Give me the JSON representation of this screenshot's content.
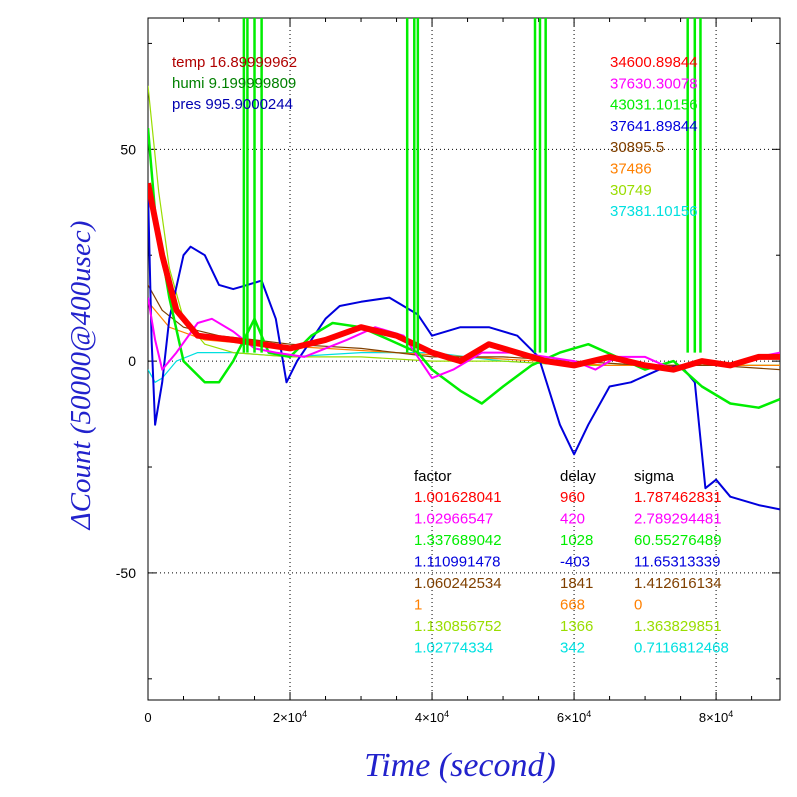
{
  "chart_data": {
    "type": "line",
    "xlabel": "Time (second)",
    "ylabel": "ΔCount (50000@400usec)",
    "xlim": [
      0,
      89000
    ],
    "ylim": [
      -80,
      81
    ],
    "x_ticks": [
      {
        "value": 0,
        "label": "0"
      },
      {
        "value": 20000,
        "mant": "2×10",
        "exp": "4"
      },
      {
        "value": 40000,
        "mant": "4×10",
        "exp": "4"
      },
      {
        "value": 60000,
        "mant": "6×10",
        "exp": "4"
      },
      {
        "value": 80000,
        "mant": "8×10",
        "exp": "4"
      }
    ],
    "y_ticks": [
      {
        "value": 50,
        "label": "50"
      },
      {
        "value": 0,
        "label": "0"
      },
      {
        "value": -50,
        "label": "-50"
      }
    ],
    "grid": "dotted",
    "env_info": [
      {
        "text": "temp 16.89999962",
        "color": "#b00000"
      },
      {
        "text": "humi 9.199999809",
        "color": "#008000"
      },
      {
        "text": "pres 995.9000244",
        "color": "#0000b0"
      }
    ],
    "table_headers": [
      "factor",
      "delay",
      "sigma"
    ],
    "series": [
      {
        "base": "34600.89844",
        "factor": "1.001628041",
        "delay": "960",
        "sigma": "1.787462831",
        "color": "#ff0000",
        "points": [
          [
            0,
            42
          ],
          [
            2000,
            25
          ],
          [
            4000,
            12
          ],
          [
            7000,
            6
          ],
          [
            12000,
            5
          ],
          [
            20000,
            3
          ],
          [
            25000,
            5
          ],
          [
            30000,
            8
          ],
          [
            35000,
            6
          ],
          [
            40000,
            2
          ],
          [
            44000,
            0
          ],
          [
            48000,
            4
          ],
          [
            52000,
            2
          ],
          [
            56000,
            0
          ],
          [
            60000,
            -1
          ],
          [
            65000,
            1
          ],
          [
            70000,
            -1
          ],
          [
            74000,
            -2
          ],
          [
            78000,
            0
          ],
          [
            82000,
            -1
          ],
          [
            86000,
            1
          ],
          [
            89000,
            1
          ]
        ]
      },
      {
        "base": "37630.30078",
        "factor": "1.02966547",
        "delay": "420",
        "sigma": "2.789294481",
        "color": "#ff00ff",
        "points": [
          [
            0,
            15
          ],
          [
            1000,
            5
          ],
          [
            2000,
            -2
          ],
          [
            4000,
            2
          ],
          [
            7000,
            9
          ],
          [
            9000,
            10
          ],
          [
            12000,
            7
          ],
          [
            15000,
            3
          ],
          [
            18000,
            2
          ],
          [
            22000,
            1
          ],
          [
            28000,
            5
          ],
          [
            32000,
            8
          ],
          [
            36000,
            6
          ],
          [
            40000,
            -4
          ],
          [
            43000,
            -2
          ],
          [
            47000,
            2
          ],
          [
            52000,
            2
          ],
          [
            56000,
            1
          ],
          [
            60000,
            0
          ],
          [
            63000,
            -2
          ],
          [
            66000,
            1
          ],
          [
            70000,
            1
          ],
          [
            74000,
            -2
          ],
          [
            78000,
            0
          ],
          [
            82000,
            -1
          ],
          [
            86000,
            1
          ],
          [
            89000,
            2
          ]
        ]
      },
      {
        "base": "43031.10156",
        "factor": "1.337689042",
        "delay": "1028",
        "sigma": "60.55276489",
        "color": "#00ee00",
        "points": [
          [
            0,
            55
          ],
          [
            1000,
            35
          ],
          [
            3000,
            15
          ],
          [
            5000,
            0
          ],
          [
            8000,
            -5
          ],
          [
            10000,
            -5
          ],
          [
            12000,
            0
          ],
          [
            15000,
            10
          ],
          [
            17000,
            2
          ],
          [
            20000,
            1
          ],
          [
            23000,
            6
          ],
          [
            26000,
            9
          ],
          [
            30000,
            8
          ],
          [
            34000,
            5
          ],
          [
            38000,
            2
          ],
          [
            40000,
            -2
          ],
          [
            44000,
            -7
          ],
          [
            47000,
            -10
          ],
          [
            50000,
            -6
          ],
          [
            54000,
            -1
          ],
          [
            58000,
            2
          ],
          [
            62000,
            4
          ],
          [
            66000,
            1
          ],
          [
            70000,
            -2
          ],
          [
            74000,
            0
          ],
          [
            78000,
            -6
          ],
          [
            82000,
            -10
          ],
          [
            86000,
            -11
          ],
          [
            89000,
            -9
          ]
        ]
      },
      {
        "base": "37641.89844",
        "factor": "1.110991478",
        "delay": "-403",
        "sigma": "11.65313339",
        "color": "#0000dd",
        "points": [
          [
            0,
            40
          ],
          [
            500,
            5
          ],
          [
            1000,
            -15
          ],
          [
            2000,
            -5
          ],
          [
            3000,
            10
          ],
          [
            5000,
            25
          ],
          [
            6000,
            27
          ],
          [
            8000,
            25
          ],
          [
            10000,
            18
          ],
          [
            12000,
            17
          ],
          [
            14000,
            18
          ],
          [
            16000,
            19
          ],
          [
            18000,
            10
          ],
          [
            19500,
            -5
          ],
          [
            21000,
            0
          ],
          [
            23000,
            5
          ],
          [
            25000,
            10
          ],
          [
            27000,
            13
          ],
          [
            30000,
            14
          ],
          [
            34000,
            15
          ],
          [
            38000,
            11
          ],
          [
            40000,
            6
          ],
          [
            44000,
            8
          ],
          [
            48000,
            8
          ],
          [
            52000,
            6
          ],
          [
            55000,
            1
          ],
          [
            58000,
            -15
          ],
          [
            60000,
            -22
          ],
          [
            62000,
            -15
          ],
          [
            65000,
            -6
          ],
          [
            68000,
            -5
          ],
          [
            72000,
            -2
          ],
          [
            75000,
            -1
          ],
          [
            77000,
            -5
          ],
          [
            78500,
            -30
          ],
          [
            80000,
            -28
          ],
          [
            82000,
            -32
          ],
          [
            86000,
            -34
          ],
          [
            89000,
            -35
          ]
        ]
      },
      {
        "base": "30895.5",
        "factor": "1.060242534",
        "delay": "1841",
        "sigma": "1.412616134",
        "color": "#804000",
        "points": [
          [
            0,
            18
          ],
          [
            2000,
            12
          ],
          [
            5000,
            8
          ],
          [
            10000,
            6
          ],
          [
            15000,
            5
          ],
          [
            20000,
            4
          ],
          [
            30000,
            3
          ],
          [
            40000,
            1
          ],
          [
            50000,
            1
          ],
          [
            60000,
            0
          ],
          [
            70000,
            -1
          ],
          [
            80000,
            -1
          ],
          [
            89000,
            -2
          ]
        ]
      },
      {
        "base": "37486",
        "factor": "1",
        "delay": "668",
        "sigma": "0",
        "color": "#ff8000",
        "points": [
          [
            0,
            14
          ],
          [
            3000,
            8
          ],
          [
            8000,
            5
          ],
          [
            15000,
            4
          ],
          [
            25000,
            3
          ],
          [
            35000,
            2
          ],
          [
            45000,
            1
          ],
          [
            55000,
            0
          ],
          [
            65000,
            -1
          ],
          [
            75000,
            -1
          ],
          [
            89000,
            -1
          ]
        ]
      },
      {
        "base": "30749",
        "factor": "1.130856752",
        "delay": "1366",
        "sigma": "1.363829851",
        "color": "#99dd00",
        "points": [
          [
            0,
            65
          ],
          [
            1500,
            40
          ],
          [
            3000,
            22
          ],
          [
            5000,
            10
          ],
          [
            8000,
            4
          ],
          [
            12000,
            2
          ],
          [
            20000,
            1
          ],
          [
            30000,
            1
          ],
          [
            40000,
            0
          ],
          [
            50000,
            0
          ],
          [
            60000,
            -1
          ],
          [
            70000,
            -1
          ],
          [
            80000,
            -1
          ],
          [
            89000,
            -1
          ]
        ]
      },
      {
        "base": "37381.10156",
        "factor": "1.02774334",
        "delay": "342",
        "sigma": "0.7116812468",
        "color": "#00e0e0",
        "points": [
          [
            0,
            -2
          ],
          [
            1000,
            -5
          ],
          [
            2000,
            -4
          ],
          [
            4000,
            0
          ],
          [
            7000,
            2
          ],
          [
            12000,
            2
          ],
          [
            20000,
            1
          ],
          [
            30000,
            2
          ],
          [
            40000,
            2
          ],
          [
            50000,
            0
          ],
          [
            60000,
            -1
          ],
          [
            70000,
            -1
          ],
          [
            80000,
            -1
          ],
          [
            89000,
            -1
          ]
        ]
      }
    ],
    "spikes": [
      {
        "x": 13500,
        "color": "#00ee00"
      },
      {
        "x": 14000,
        "color": "#00ee00"
      },
      {
        "x": 15000,
        "color": "#00ee00"
      },
      {
        "x": 16000,
        "color": "#00ee00"
      },
      {
        "x": 36500,
        "color": "#00ee00"
      },
      {
        "x": 37500,
        "color": "#00ee00"
      },
      {
        "x": 38000,
        "color": "#00ee00"
      },
      {
        "x": 54500,
        "color": "#00ee00"
      },
      {
        "x": 55200,
        "color": "#00ee00"
      },
      {
        "x": 56000,
        "color": "#00ee00"
      },
      {
        "x": 76000,
        "color": "#00ee00"
      },
      {
        "x": 77000,
        "color": "#00ee00"
      },
      {
        "x": 77800,
        "color": "#00ee00"
      }
    ]
  }
}
